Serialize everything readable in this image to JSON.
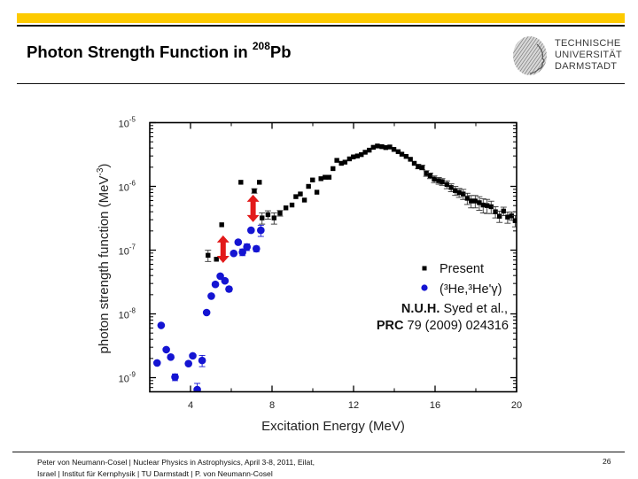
{
  "header": {
    "title_main": "Photon Strength Function in ",
    "title_sup": "208",
    "title_end": "Pb",
    "accent_color": "#FDCA00"
  },
  "logo": {
    "icon": "university-seal-icon",
    "lines": [
      "TECHNISCHE",
      "UNIVERSITÄT",
      "DARMSTADT"
    ]
  },
  "footer": {
    "line1": "Peter von Neumann-Cosel | Nuclear Physics in Astrophysics, April 3-8, 2011, Eilat,",
    "line2": "Israel | Institut für Kernphysik | TU Darmstadt | P. von Neumann-Cosel",
    "page_number": "26"
  },
  "chart_data": {
    "type": "scatter",
    "title": "",
    "xlabel": "Excitation Energy (MeV)",
    "ylabel": "photon strength function (MeV^-3)",
    "ylabel_parts": {
      "main": "photon strength function (MeV",
      "sup": "-3",
      "end": ")"
    },
    "xscale": "linear",
    "yscale": "log",
    "xlim": [
      2,
      20
    ],
    "ylim": [
      6e-10,
      1e-05
    ],
    "xticks": [
      4,
      8,
      12,
      16,
      20
    ],
    "xtick_labels": [
      "4",
      "8",
      "12",
      "16",
      "20"
    ],
    "xminor": [
      6,
      10,
      14,
      18
    ],
    "yticks": [
      1e-05,
      1e-06,
      1e-07,
      1e-08,
      1e-09
    ],
    "ytick_labels": [
      {
        "base": "10",
        "exp": "-5"
      },
      {
        "base": "10",
        "exp": "-6"
      },
      {
        "base": "10",
        "exp": "-7"
      },
      {
        "base": "10",
        "exp": "-8"
      },
      {
        "base": "10",
        "exp": "-9"
      }
    ],
    "grid": false,
    "legend_position": "center-right",
    "legend": {
      "entries": [
        "Present",
        "(³He,³He'γ)"
      ],
      "ref_author_bold": "N.U.H.",
      "ref_author_rest": " Syed et al.,",
      "ref_journal_bold": "PRC",
      "ref_journal_rest": " 79 (2009) 024316"
    },
    "series": [
      {
        "name": "Present",
        "marker": "square",
        "color": "#000000",
        "points_format": "[E_MeV, f_MeV^-3, relative_error]",
        "points": [
          [
            4.86,
            8.3e-08,
            0.2
          ],
          [
            5.27,
            7.2e-08,
            0.05
          ],
          [
            5.53,
            2.5e-07,
            0.05
          ],
          [
            6.47,
            1.16e-06,
            0.05
          ],
          [
            7.13,
            8.5e-07,
            0.08
          ],
          [
            7.38,
            1.16e-06,
            0.05
          ],
          [
            7.51,
            3.2e-07,
            0.2
          ],
          [
            7.8,
            3.6e-07,
            0.15
          ],
          [
            8.1,
            3.2e-07,
            0.2
          ],
          [
            8.39,
            3.8e-07,
            0.1
          ],
          [
            8.68,
            4.6e-07,
            0.05
          ],
          [
            8.98,
            5.1e-07,
            0.05
          ],
          [
            9.17,
            6.9e-07,
            0.05
          ],
          [
            9.39,
            7.6e-07,
            0.05
          ],
          [
            9.59,
            6.1e-07,
            0.05
          ],
          [
            9.79,
            1e-06,
            0.05
          ],
          [
            9.99,
            1.26e-06,
            0.05
          ],
          [
            10.2,
            8.1e-07,
            0.05
          ],
          [
            10.4,
            1.32e-06,
            0.05
          ],
          [
            10.6,
            1.39e-06,
            0.05
          ],
          [
            10.8,
            1.39e-06,
            0.05
          ],
          [
            10.99,
            1.9e-06,
            0.05
          ],
          [
            11.18,
            2.56e-06,
            0.05
          ],
          [
            11.4,
            2.3e-06,
            0.05
          ],
          [
            11.58,
            2.4e-06,
            0.04
          ],
          [
            11.8,
            2.7e-06,
            0.04
          ],
          [
            11.99,
            2.9e-06,
            0.04
          ],
          [
            12.19,
            3e-06,
            0.04
          ],
          [
            12.38,
            3.15e-06,
            0.04
          ],
          [
            12.57,
            3.43e-06,
            0.04
          ],
          [
            12.77,
            3.7e-06,
            0.04
          ],
          [
            12.97,
            4.1e-06,
            0.04
          ],
          [
            13.17,
            4.3e-06,
            0.04
          ],
          [
            13.39,
            4.2e-06,
            0.04
          ],
          [
            13.58,
            4.06e-06,
            0.04
          ],
          [
            13.78,
            4.15e-06,
            0.04
          ],
          [
            13.98,
            3.8e-06,
            0.04
          ],
          [
            14.19,
            3.5e-06,
            0.04
          ],
          [
            14.37,
            3.2e-06,
            0.05
          ],
          [
            14.58,
            2.95e-06,
            0.05
          ],
          [
            14.79,
            2.66e-06,
            0.06
          ],
          [
            14.98,
            2.3e-06,
            0.06
          ],
          [
            15.17,
            2.05e-06,
            0.08
          ],
          [
            15.37,
            1.98e-06,
            0.08
          ],
          [
            15.57,
            1.6e-06,
            0.1
          ],
          [
            15.76,
            1.47e-06,
            0.1
          ],
          [
            15.96,
            1.3e-06,
            0.12
          ],
          [
            16.18,
            1.23e-06,
            0.12
          ],
          [
            16.35,
            1.18e-06,
            0.12
          ],
          [
            16.58,
            1.07e-06,
            0.14
          ],
          [
            16.79,
            9.6e-07,
            0.14
          ],
          [
            16.99,
            8.6e-07,
            0.16
          ],
          [
            17.18,
            8e-07,
            0.16
          ],
          [
            17.38,
            7.6e-07,
            0.18
          ],
          [
            17.58,
            6.5e-07,
            0.2
          ],
          [
            17.77,
            5.9e-07,
            0.22
          ],
          [
            17.97,
            5.9e-07,
            0.22
          ],
          [
            18.17,
            5.55e-07,
            0.24
          ],
          [
            18.36,
            5.1e-07,
            0.25
          ],
          [
            18.55,
            5e-07,
            0.25
          ],
          [
            18.75,
            4.8e-07,
            0.22
          ],
          [
            18.96,
            4e-07,
            0.2
          ],
          [
            19.16,
            3.4e-07,
            0.2
          ],
          [
            19.36,
            4.1e-07,
            0.15
          ],
          [
            19.56,
            3.3e-07,
            0.2
          ],
          [
            19.75,
            3.45e-07,
            0.15
          ],
          [
            19.93,
            2.9e-07,
            0.2
          ]
        ]
      },
      {
        "name": "(³He,³He'γ)",
        "marker": "circle",
        "color": "#1414D2",
        "points_format": "[E_MeV, f_MeV^-3, relative_error]",
        "points": [
          [
            2.36,
            1.7e-09,
            0.05
          ],
          [
            2.56,
            6.6e-09,
            0.05
          ],
          [
            2.81,
            2.75e-09,
            0.05
          ],
          [
            3.03,
            2.1e-09,
            0.05
          ],
          [
            3.24,
            1.02e-09,
            0.12
          ],
          [
            3.9,
            1.66e-09,
            0.05
          ],
          [
            4.11,
            2.2e-09,
            0.05
          ],
          [
            4.33,
            6.5e-10,
            0.25
          ],
          [
            4.57,
            1.86e-09,
            0.2
          ],
          [
            4.79,
            1.05e-08,
            0.05
          ],
          [
            5.02,
            1.9e-08,
            0.05
          ],
          [
            5.22,
            2.9e-08,
            0.05
          ],
          [
            5.46,
            3.9e-08,
            0.05
          ],
          [
            5.69,
            3.3e-08,
            0.05
          ],
          [
            5.89,
            2.45e-08,
            0.08
          ],
          [
            6.12,
            8.9e-08,
            0.05
          ],
          [
            6.34,
            1.33e-07,
            0.05
          ],
          [
            6.55,
            9.3e-08,
            0.12
          ],
          [
            6.77,
            1.12e-07,
            0.12
          ],
          [
            6.97,
            2.05e-07,
            0.06
          ],
          [
            7.23,
            1.05e-07,
            0.1
          ],
          [
            7.45,
            2.05e-07,
            0.2
          ]
        ]
      }
    ],
    "annotations": {
      "arrows": [
        {
          "type": "double-arrow",
          "color": "#E21A1A",
          "x": 5.6,
          "y_from": 6.3e-08,
          "y_to": 1.7e-07
        },
        {
          "type": "double-arrow",
          "color": "#E21A1A",
          "x": 7.07,
          "y_from": 2.75e-07,
          "y_to": 7.4e-07
        }
      ]
    }
  }
}
